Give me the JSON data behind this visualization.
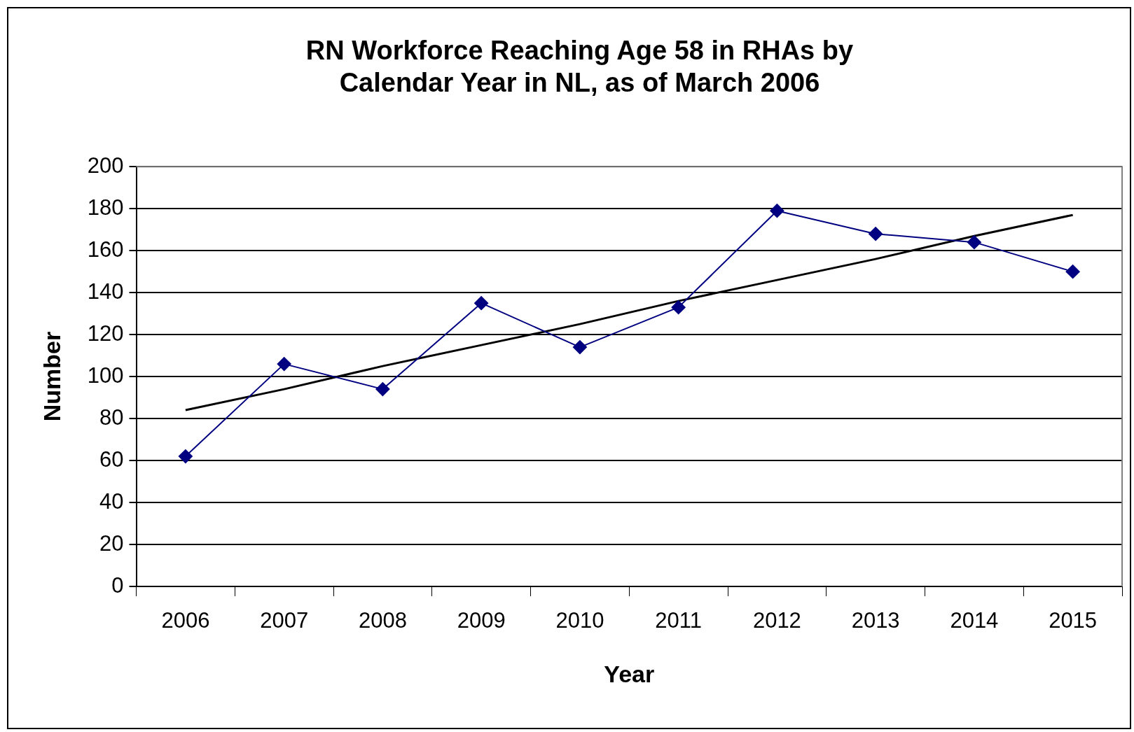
{
  "chart_data": {
    "type": "line",
    "title": "RN Workforce Reaching Age 58 in RHAs by\nCalendar Year in NL, as of March 2006",
    "xlabel": "Year",
    "ylabel": "Number",
    "categories": [
      "2006",
      "2007",
      "2008",
      "2009",
      "2010",
      "2011",
      "2012",
      "2013",
      "2014",
      "2015"
    ],
    "series": [
      {
        "color": "#000080",
        "marker": "diamond",
        "values": [
          62,
          106,
          94,
          135,
          114,
          133,
          179,
          168,
          164,
          150
        ]
      },
      {
        "color": "#000000",
        "marker": "none",
        "values": [
          84,
          94,
          105,
          115,
          125,
          136,
          146,
          156,
          167,
          177
        ]
      }
    ],
    "ylim": [
      0,
      200
    ],
    "yticks": [
      0,
      20,
      40,
      60,
      80,
      100,
      120,
      140,
      160,
      180,
      200
    ],
    "grid": "y",
    "legend": false
  }
}
